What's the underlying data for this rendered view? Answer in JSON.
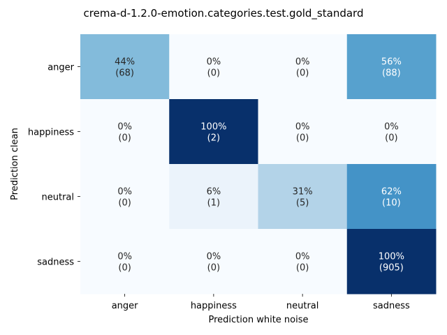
{
  "chart_data": {
    "type": "heatmap",
    "title": "crema-d-1.2.0-emotion.categories.test.gold_standard",
    "xlabel": "Prediction white noise",
    "ylabel": "Prediction clean",
    "x_categories": [
      "anger",
      "happiness",
      "neutral",
      "sadness"
    ],
    "y_categories": [
      "anger",
      "happiness",
      "neutral",
      "sadness"
    ],
    "percent": [
      [
        44,
        0,
        0,
        56
      ],
      [
        0,
        100,
        0,
        0
      ],
      [
        0,
        6,
        31,
        62
      ],
      [
        0,
        0,
        0,
        100
      ]
    ],
    "counts": [
      [
        68,
        0,
        0,
        88
      ],
      [
        0,
        2,
        0,
        0
      ],
      [
        0,
        1,
        5,
        10
      ],
      [
        0,
        0,
        0,
        905
      ]
    ],
    "colormap": "Blues",
    "colorbar": false
  }
}
